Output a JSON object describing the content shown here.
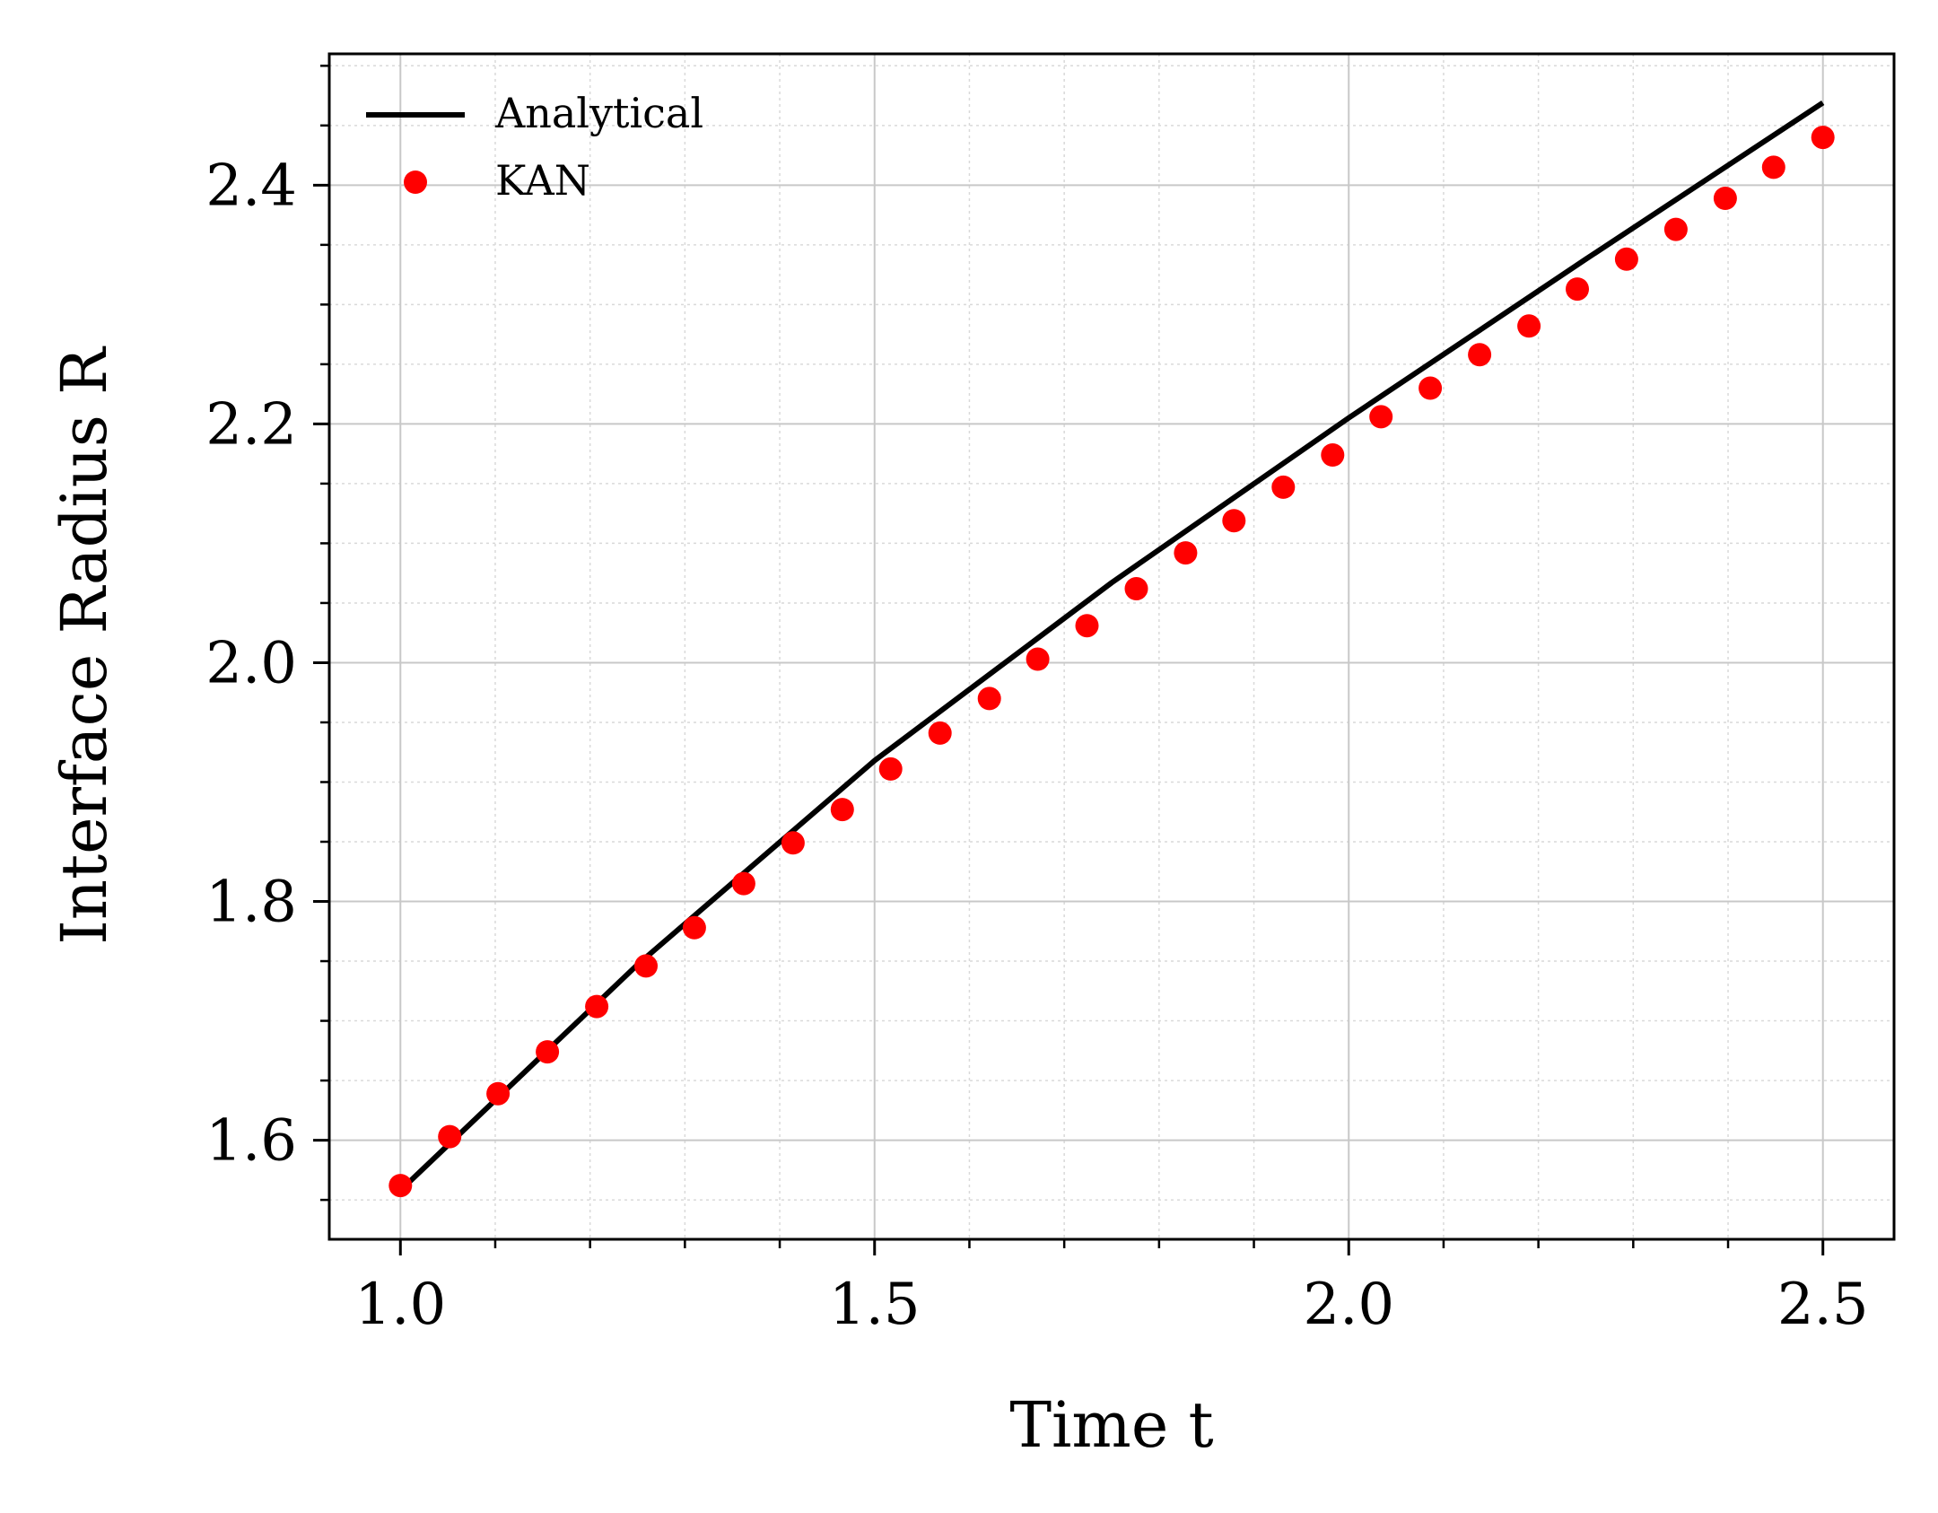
{
  "chart_data": {
    "type": "scatter",
    "xlabel": "Time t",
    "ylabel": "Interface Radius R",
    "xlim": [
      0.925,
      2.575
    ],
    "ylim": [
      1.517,
      2.51
    ],
    "x_ticks": [
      "1.0",
      "1.5",
      "2.0",
      "2.5"
    ],
    "x_tick_values": [
      1.0,
      1.5,
      2.0,
      2.5
    ],
    "y_ticks": [
      "1.6",
      "1.8",
      "2.0",
      "2.2",
      "2.4"
    ],
    "y_tick_values": [
      1.6,
      1.8,
      2.0,
      2.2,
      2.4
    ],
    "x_minor_step": 0.1,
    "y_minor_step": 0.05,
    "grid": true,
    "legend_position": "top-left",
    "series": [
      {
        "name": "Analytical",
        "kind": "line",
        "color": "#000000",
        "x": [
          1.0,
          1.25,
          1.5,
          1.75,
          2.0,
          2.25,
          2.5
        ],
        "y": [
          1.558,
          1.747,
          1.918,
          2.067,
          2.205,
          2.338,
          2.469
        ]
      },
      {
        "name": "KAN",
        "kind": "scatter",
        "color": "#ff0000",
        "x": [
          1.0,
          1.052,
          1.103,
          1.155,
          1.207,
          1.259,
          1.31,
          1.362,
          1.414,
          1.466,
          1.517,
          1.569,
          1.621,
          1.672,
          1.724,
          1.776,
          1.828,
          1.879,
          1.931,
          1.983,
          2.034,
          2.086,
          2.138,
          2.19,
          2.241,
          2.293,
          2.345,
          2.397,
          2.448,
          2.5
        ],
        "y": [
          1.562,
          1.603,
          1.639,
          1.674,
          1.712,
          1.746,
          1.778,
          1.815,
          1.849,
          1.877,
          1.911,
          1.941,
          1.97,
          2.003,
          2.031,
          2.062,
          2.092,
          2.119,
          2.147,
          2.174,
          2.206,
          2.23,
          2.258,
          2.282,
          2.313,
          2.338,
          2.363,
          2.389,
          2.415,
          2.44
        ]
      }
    ]
  }
}
